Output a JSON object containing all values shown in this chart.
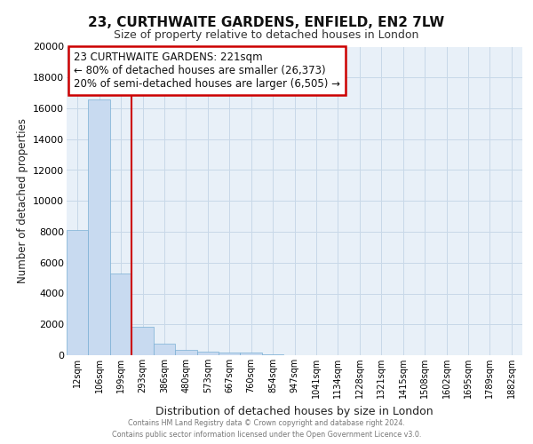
{
  "title": "23, CURTHWAITE GARDENS, ENFIELD, EN2 7LW",
  "subtitle": "Size of property relative to detached houses in London",
  "xlabel": "Distribution of detached houses by size in London",
  "ylabel": "Number of detached properties",
  "categories": [
    "12sqm",
    "106sqm",
    "199sqm",
    "293sqm",
    "386sqm",
    "480sqm",
    "573sqm",
    "667sqm",
    "760sqm",
    "854sqm",
    "947sqm",
    "1041sqm",
    "1134sqm",
    "1228sqm",
    "1321sqm",
    "1415sqm",
    "1508sqm",
    "1602sqm",
    "1695sqm",
    "1789sqm",
    "1882sqm"
  ],
  "bar_heights": [
    8100,
    16550,
    5300,
    1850,
    750,
    350,
    250,
    150,
    170,
    50,
    0,
    0,
    0,
    0,
    0,
    0,
    0,
    0,
    0,
    0,
    0
  ],
  "bar_color": "#c8daf0",
  "bar_edge_color": "#7aafd4",
  "grid_color": "#c8d8e8",
  "bg_color": "#e8f0f8",
  "red_line_x": 2.5,
  "annotation_text": "23 CURTHWAITE GARDENS: 221sqm\n← 80% of detached houses are smaller (26,373)\n20% of semi-detached houses are larger (6,505) →",
  "annotation_box_color": "#cc0000",
  "ylim": [
    0,
    20000
  ],
  "yticks": [
    0,
    2000,
    4000,
    6000,
    8000,
    10000,
    12000,
    14000,
    16000,
    18000,
    20000
  ],
  "footer_line1": "Contains HM Land Registry data © Crown copyright and database right 2024.",
  "footer_line2": "Contains public sector information licensed under the Open Government Licence v3.0."
}
